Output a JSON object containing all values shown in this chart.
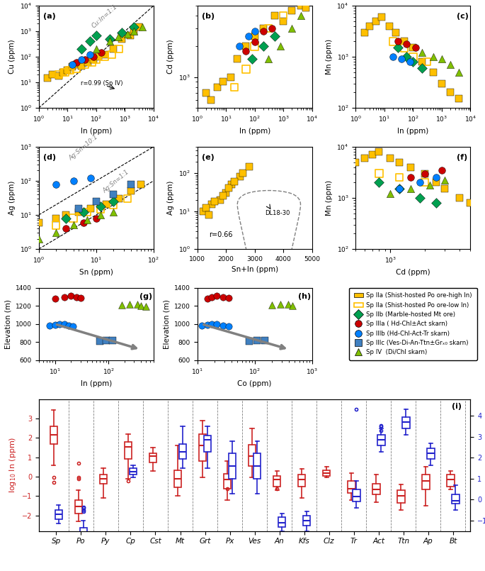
{
  "legend_entries": [
    {
      "label": "Sp IIa (Shist-hosted Po ore-high In)",
      "color": "#FFC000",
      "marker": "s",
      "filled": true
    },
    {
      "label": "Sp IIa (Shist-hosted Po ore-low In)",
      "color": "#FFC000",
      "marker": "s",
      "filled": false
    },
    {
      "label": "Sp IIb (Marble-hosted Mt ore)",
      "color": "#00A050",
      "marker": "D",
      "filled": true
    },
    {
      "label": "Sp IIIa ( Hd-Chl±Act skarn)",
      "color": "#CC0000",
      "marker": "o",
      "filled": true
    },
    {
      "label": "Sp IIIb (Hd-Chl-Act-Tr skarn)",
      "color": "#0080FF",
      "marker": "o",
      "filled": true
    },
    {
      "label": "Sp IIIc (Ves-Di-An-Ttn±Grₓ₀ skarn)",
      "color": "#0080FF",
      "marker": "s",
      "filled": true
    },
    {
      "label": "Sp IV  (Di/Chl skarn)",
      "color": "#80C000",
      "marker": "^",
      "filled": true
    }
  ],
  "panel_labels": [
    "a",
    "b",
    "c",
    "d",
    "e",
    "f",
    "g",
    "h",
    "i"
  ],
  "boxplot_categories": [
    "Sp",
    "Po",
    "Py",
    "Cp",
    "Cst",
    "Mt",
    "Grt",
    "Px",
    "Ves",
    "An",
    "Kfs",
    "Clz",
    "Tr",
    "Act",
    "Ttn",
    "Ap",
    "Bt"
  ],
  "In_boxes": [
    {
      "med": 2.15,
      "q1": 1.7,
      "q3": 2.6,
      "whislo": 0.6,
      "whishi": 3.45,
      "fliers": [
        -0.05,
        -0.3
      ]
    },
    {
      "med": -1.55,
      "q1": -1.9,
      "q3": -1.2,
      "whislo": -2.3,
      "whishi": -0.7,
      "fliers": [
        -0.05,
        0.7,
        -0.1
      ]
    },
    {
      "med": -0.1,
      "q1": -0.35,
      "q3": 0.1,
      "whislo": -1.1,
      "whishi": 0.45,
      "fliers": []
    },
    {
      "med": 1.55,
      "q1": 0.9,
      "q3": 1.8,
      "whislo": -0.1,
      "whishi": 2.2,
      "fliers": [
        -0.2
      ]
    },
    {
      "med": 1.05,
      "q1": 0.75,
      "q3": 1.2,
      "whislo": 0.3,
      "whishi": 1.5,
      "fliers": []
    },
    {
      "med": -0.1,
      "q1": -0.55,
      "q3": 0.35,
      "whislo": -1.0,
      "whishi": 1.6,
      "fliers": []
    },
    {
      "med": 1.6,
      "q1": 0.8,
      "q3": 2.2,
      "whislo": -0.05,
      "whishi": 2.9,
      "fliers": []
    },
    {
      "med": -0.15,
      "q1": -0.6,
      "q3": 0.15,
      "whislo": -1.2,
      "whishi": 0.8,
      "fliers": [
        -0.6
      ]
    },
    {
      "med": 1.05,
      "q1": 0.55,
      "q3": 1.65,
      "whislo": -0.05,
      "whishi": 2.5,
      "fliers": []
    },
    {
      "med": -0.15,
      "q1": -0.5,
      "q3": 0.05,
      "whislo": -0.7,
      "whishi": 0.3,
      "fliers": [
        -0.6
      ]
    },
    {
      "med": -0.15,
      "q1": -0.5,
      "q3": 0.1,
      "whislo": -1.1,
      "whishi": 0.4,
      "fliers": []
    },
    {
      "med": 0.2,
      "q1": 0.05,
      "q3": 0.35,
      "whislo": -0.05,
      "whishi": 0.5,
      "fliers": []
    },
    {
      "med": -0.6,
      "q1": -0.85,
      "q3": -0.2,
      "whislo": -1.2,
      "whishi": 0.2,
      "fliers": []
    },
    {
      "med": -0.65,
      "q1": -0.9,
      "q3": -0.35,
      "whislo": -1.3,
      "whishi": 0.1,
      "fliers": []
    },
    {
      "med": -1.0,
      "q1": -1.35,
      "q3": -0.7,
      "whislo": -1.7,
      "whishi": -0.4,
      "fliers": []
    },
    {
      "med": -0.2,
      "q1": -0.65,
      "q3": 0.1,
      "whislo": -1.5,
      "whishi": 0.5,
      "fliers": []
    },
    {
      "med": -0.15,
      "q1": -0.5,
      "q3": 0.1,
      "whislo": -0.65,
      "whishi": 0.3,
      "fliers": []
    }
  ],
  "Sn_boxes": [
    {
      "med": -0.7,
      "q1": -0.95,
      "q3": -0.5,
      "whislo": -1.15,
      "whishi": -0.25,
      "fliers": []
    },
    {
      "med": -1.7,
      "q1": -2.0,
      "q3": -1.35,
      "whislo": -2.5,
      "whishi": -1.0,
      "fliers": [
        -0.35,
        -0.4,
        -0.5,
        -0.55
      ]
    },
    {
      "med": null,
      "q1": null,
      "q3": null,
      "whislo": null,
      "whishi": null,
      "fliers": []
    },
    {
      "med": 1.35,
      "q1": 1.2,
      "q3": 1.5,
      "whislo": 1.05,
      "whishi": 1.65,
      "fliers": []
    },
    {
      "med": null,
      "q1": null,
      "q3": null,
      "whislo": null,
      "whishi": null,
      "fliers": []
    },
    {
      "med": 2.3,
      "q1": 1.95,
      "q3": 2.65,
      "whislo": 1.5,
      "whishi": 3.5,
      "fliers": []
    },
    {
      "med": 2.85,
      "q1": 2.3,
      "q3": 3.05,
      "whislo": 1.5,
      "whishi": 3.5,
      "fliers": []
    },
    {
      "med": 1.6,
      "q1": 1.0,
      "q3": 2.2,
      "whislo": 0.3,
      "whishi": 2.8,
      "fliers": []
    },
    {
      "med": 1.6,
      "q1": 1.0,
      "q3": 2.2,
      "whislo": 0.3,
      "whishi": 2.8,
      "fliers": []
    },
    {
      "med": -1.1,
      "q1": -1.3,
      "q3": -0.85,
      "whislo": -1.5,
      "whishi": -0.65,
      "fliers": []
    },
    {
      "med": -1.0,
      "q1": -1.25,
      "q3": -0.75,
      "whislo": -1.5,
      "whishi": -0.55,
      "fliers": []
    },
    {
      "med": null,
      "q1": null,
      "q3": null,
      "whislo": null,
      "whishi": null,
      "fliers": []
    },
    {
      "med": 0.15,
      "q1": -0.1,
      "q3": 0.5,
      "whislo": -0.4,
      "whishi": 0.9,
      "fliers": [
        4.3
      ]
    },
    {
      "med": 2.85,
      "q1": 2.6,
      "q3": 3.1,
      "whislo": 2.3,
      "whishi": 3.4,
      "fliers": [
        3.3,
        3.5,
        3.55
      ]
    },
    {
      "med": 3.7,
      "q1": 3.4,
      "q3": 3.95,
      "whislo": 3.1,
      "whishi": 4.3,
      "fliers": []
    },
    {
      "med": 2.2,
      "q1": 1.95,
      "q3": 2.45,
      "whislo": 1.65,
      "whishi": 2.7,
      "fliers": []
    },
    {
      "med": -0.05,
      "q1": -0.2,
      "q3": 0.25,
      "whislo": -0.5,
      "whishi": 0.7,
      "fliers": []
    }
  ]
}
